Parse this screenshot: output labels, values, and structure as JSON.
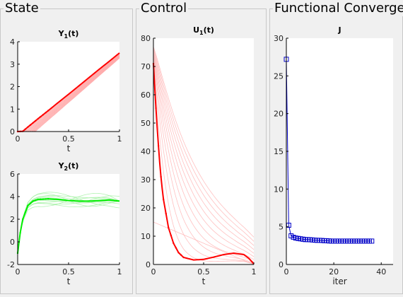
{
  "panels": {
    "state": "State",
    "control": "Control",
    "convergence": "Functional Converge"
  },
  "chart_data": [
    {
      "type": "line",
      "title_main": "Y",
      "title_sub": "1",
      "title_suffix": "(t)",
      "xlabel": "t",
      "ylabel": "",
      "xlim": [
        0,
        1
      ],
      "ylim": [
        0,
        4
      ],
      "xticks": [
        "0",
        "0.5",
        "1"
      ],
      "yticks": [
        "0",
        "1",
        "2",
        "3",
        "4"
      ],
      "final_color": "#ff0000",
      "iter_color": "#ff9e9e",
      "final": {
        "x": [
          0,
          0.05,
          0.1,
          0.2,
          0.3,
          0.4,
          0.5,
          0.6,
          0.7,
          0.8,
          0.9,
          1.0
        ],
        "y": [
          0,
          0.01,
          0.2,
          0.57,
          0.93,
          1.3,
          1.66,
          2.03,
          2.4,
          2.77,
          3.13,
          3.5
        ]
      }
    },
    {
      "type": "line",
      "title_main": "Y",
      "title_sub": "2",
      "title_suffix": "(t)",
      "xlabel": "t",
      "ylabel": "",
      "xlim": [
        0,
        1
      ],
      "ylim": [
        -2,
        6
      ],
      "xticks": [
        "0",
        "0.5",
        "1"
      ],
      "yticks": [
        "-2",
        "0",
        "2",
        "4",
        "6"
      ],
      "final_color": "#00ee00",
      "iter_color": "#9ef09e",
      "final": {
        "x": [
          0,
          0.025,
          0.05,
          0.1,
          0.15,
          0.2,
          0.3,
          0.4,
          0.5,
          0.6,
          0.7,
          0.8,
          0.9,
          1.0
        ],
        "y": [
          -1.0,
          0.8,
          2.0,
          3.2,
          3.6,
          3.75,
          3.8,
          3.75,
          3.65,
          3.6,
          3.6,
          3.65,
          3.7,
          3.6
        ]
      }
    },
    {
      "type": "line",
      "title_main": "U",
      "title_sub": "1",
      "title_suffix": "(t)",
      "xlabel": "t",
      "ylabel": "",
      "xlim": [
        0,
        1
      ],
      "ylim": [
        0,
        80
      ],
      "xticks": [
        "0",
        "0.5",
        "1"
      ],
      "yticks": [
        "0",
        "10",
        "20",
        "30",
        "40",
        "50",
        "60",
        "70",
        "80"
      ],
      "final_color": "#ff0000",
      "iter_color": "#ffb0b0",
      "final": {
        "x": [
          0,
          0.02,
          0.04,
          0.06,
          0.08,
          0.1,
          0.15,
          0.2,
          0.25,
          0.3,
          0.4,
          0.5,
          0.6,
          0.7,
          0.8,
          0.9,
          0.95,
          1.0
        ],
        "y": [
          71,
          58,
          47,
          37,
          29,
          23,
          13,
          7.5,
          4.2,
          2.5,
          1.6,
          1.8,
          2.6,
          3.5,
          4.0,
          3.5,
          2.2,
          0.2
        ]
      }
    },
    {
      "type": "line",
      "title_main": "J",
      "title_sub": "",
      "title_suffix": "",
      "xlabel": "iter",
      "ylabel": "",
      "xlim": [
        0,
        45
      ],
      "ylim": [
        0,
        30
      ],
      "xticks": [
        "0",
        "20",
        "40"
      ],
      "yticks": [
        "0",
        "5",
        "10",
        "15",
        "20",
        "25",
        "30"
      ],
      "series_color": "#0000c8",
      "x": [
        0,
        1,
        2,
        3,
        4,
        5,
        6,
        7,
        8,
        9,
        10,
        11,
        12,
        13,
        14,
        15,
        16,
        17,
        18,
        19,
        20,
        21,
        22,
        23,
        24,
        25,
        26,
        27,
        28,
        29,
        30,
        31,
        32,
        33,
        34,
        35,
        36
      ],
      "y": [
        27.2,
        5.2,
        3.8,
        3.6,
        3.5,
        3.45,
        3.4,
        3.35,
        3.3,
        3.3,
        3.28,
        3.25,
        3.22,
        3.2,
        3.2,
        3.18,
        3.15,
        3.15,
        3.12,
        3.1,
        3.1,
        3.1,
        3.1,
        3.1,
        3.1,
        3.1,
        3.1,
        3.1,
        3.1,
        3.1,
        3.1,
        3.1,
        3.1,
        3.1,
        3.1,
        3.1,
        3.1
      ]
    }
  ]
}
